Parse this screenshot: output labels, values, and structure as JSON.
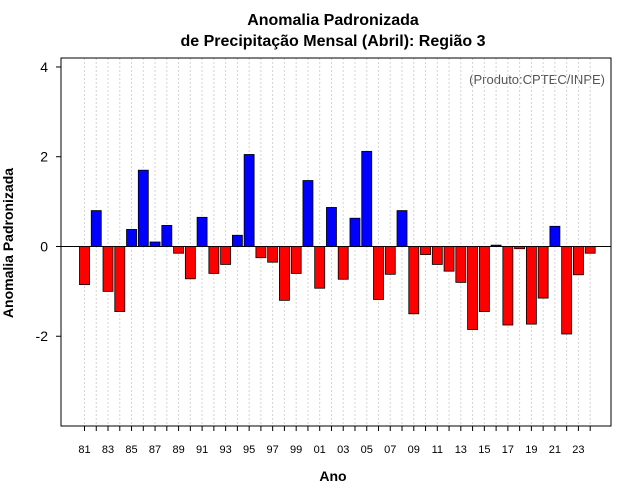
{
  "chart_data": {
    "type": "bar",
    "title": "Anomalia Padronizada",
    "subtitle": "de Precipitação Mensal (Abril): Região 3",
    "xlabel": "Ano",
    "ylabel": "Anomalia Padronizada",
    "credit": "(Produto:CPTEC/INPE)",
    "ylim": [
      -4,
      4.2
    ],
    "yticks": [
      -2,
      0,
      2,
      4
    ],
    "grid": true,
    "positive_color": "#0000ff",
    "negative_color": "#ff0000",
    "categories": [
      "81",
      "82",
      "83",
      "84",
      "85",
      "86",
      "87",
      "88",
      "89",
      "90",
      "91",
      "92",
      "93",
      "94",
      "95",
      "96",
      "97",
      "98",
      "99",
      "00",
      "01",
      "02",
      "03",
      "04",
      "05",
      "06",
      "07",
      "08",
      "09",
      "10",
      "11",
      "12",
      "13",
      "14",
      "15",
      "16",
      "17",
      "18",
      "19",
      "20",
      "21",
      "22",
      "23",
      "24"
    ],
    "xtick_labels": [
      "81",
      "83",
      "85",
      "87",
      "89",
      "91",
      "93",
      "95",
      "97",
      "99",
      "01",
      "03",
      "05",
      "07",
      "09",
      "11",
      "13",
      "15",
      "17",
      "19",
      "21",
      "23"
    ],
    "values": [
      -0.85,
      0.8,
      -1.0,
      -1.45,
      0.38,
      1.7,
      0.1,
      0.47,
      -0.15,
      -0.72,
      0.65,
      -0.6,
      -0.4,
      0.25,
      2.05,
      -0.25,
      -0.35,
      -1.2,
      -0.6,
      1.47,
      -0.93,
      0.87,
      -0.73,
      0.63,
      2.12,
      -1.18,
      -0.62,
      0.8,
      -1.5,
      -0.18,
      -0.4,
      -0.55,
      -0.8,
      -1.85,
      -1.45,
      0.03,
      -1.75,
      -0.05,
      -1.73,
      -1.15,
      0.45,
      -1.95,
      -0.63,
      -0.15
    ]
  }
}
